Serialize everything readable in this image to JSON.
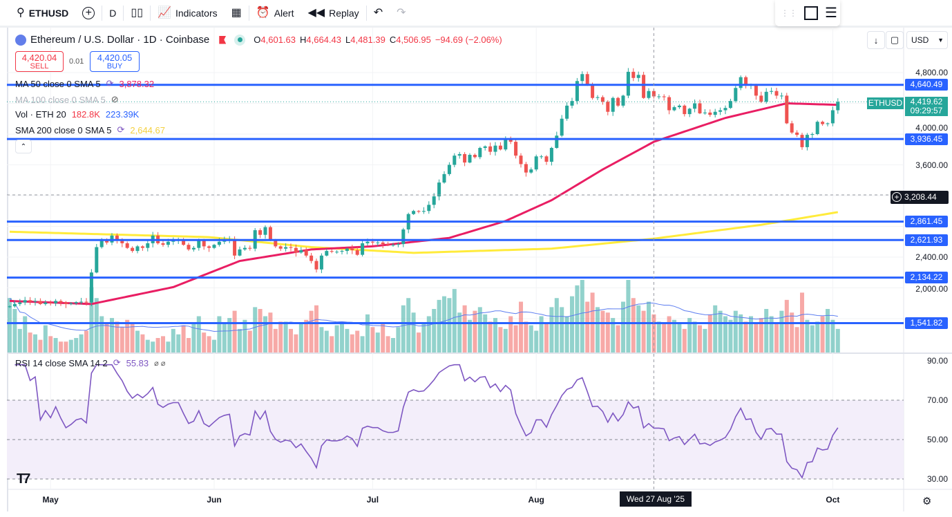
{
  "toolbar": {
    "symbol": "ETHUSD",
    "interval": "D",
    "indicators": "Indicators",
    "alert": "Alert",
    "replay": "Replay"
  },
  "legend": {
    "title": "Ethereum / U.S. Dollar · 1D · Coinbase",
    "o_label": "O",
    "o": "4,601.63",
    "h_label": "H",
    "h": "4,664.43",
    "l_label": "L",
    "l": "4,481.39",
    "c_label": "C",
    "c": "4,506.95",
    "change": "−94.69 (−2.06%)",
    "sell_price": "4,420.04",
    "sell_label": "SELL",
    "spread": "0.01",
    "buy_price": "4,420.05",
    "buy_label": "BUY",
    "ma50_label": "MA 50 close 0 SMA 5",
    "ma50_value": "3,878.32",
    "ma100_label": "MA 100 close 0 SMA 5",
    "vol_label": "Vol · ETH 20",
    "vol_value1": "182.8K",
    "vol_value2": "223.39K",
    "sma200_label": "SMA 200 close 0 SMA 5",
    "sma200_value": "2,644.67",
    "rsi_label": "RSI 14 close SMA 14 2",
    "rsi_value": "55.83",
    "rsi_extra": "⌀ ⌀"
  },
  "price_scale": {
    "currency": "USD",
    "ticks": [
      "4,800.00",
      "4,000.00",
      "3,600.00",
      "2,400.00",
      "2,000.00"
    ],
    "symbol_tag": "ETHUSD",
    "last_price": "4,419.62",
    "countdown": "09:29:57",
    "crosshair_price": "3,208.44"
  },
  "rsi_scale": {
    "ticks": [
      "90.00",
      "70.00",
      "50.00",
      "30.00"
    ]
  },
  "crosshair_date": "Wed 27 Aug '25",
  "colors": {
    "up": "#26a69a",
    "down": "#ef5350",
    "level": "#2962ff",
    "ma50": "#e91e63",
    "sma200": "#ffeb3b",
    "rsi": "#7e57c2",
    "volma": "#5b7cf0"
  },
  "chart_data": {
    "type": "candlestick",
    "title": "Ethereum / U.S. Dollar · 1D · Coinbase",
    "ylim": [
      1400,
      4950
    ],
    "x_labels": [
      {
        "label": "May",
        "index": 8
      },
      {
        "label": "Jun",
        "index": 40
      },
      {
        "label": "Jul",
        "index": 71
      },
      {
        "label": "Aug",
        "index": 103
      },
      {
        "label": "Oct",
        "index": 161
      }
    ],
    "closes": [
      1760,
      1790,
      1810,
      1840,
      1820,
      1830,
      1790,
      1810,
      1800,
      1830,
      1810,
      1790,
      1800,
      1815,
      1820,
      1810,
      2200,
      2530,
      2610,
      2590,
      2680,
      2620,
      2580,
      2520,
      2480,
      2540,
      2520,
      2580,
      2680,
      2580,
      2560,
      2600,
      2620,
      2620,
      2560,
      2500,
      2520,
      2620,
      2540,
      2520,
      2560,
      2600,
      2620,
      2630,
      2420,
      2500,
      2520,
      2510,
      2750,
      2690,
      2790,
      2620,
      2540,
      2510,
      2530,
      2520,
      2460,
      2490,
      2420,
      2350,
      2240,
      2420,
      2480,
      2470,
      2470,
      2480,
      2510,
      2490,
      2430,
      2580,
      2600,
      2590,
      2590,
      2570,
      2560,
      2560,
      2570,
      2760,
      2960,
      3000,
      2990,
      3000,
      3080,
      3190,
      3370,
      3480,
      3600,
      3720,
      3740,
      3630,
      3730,
      3700,
      3820,
      3840,
      3770,
      3850,
      3800,
      3930,
      3900,
      3720,
      3610,
      3500,
      3540,
      3710,
      3710,
      3640,
      3820,
      3980,
      4200,
      4370,
      4430,
      4690,
      4780,
      4640,
      4470,
      4480,
      4420,
      4290,
      4470,
      4370,
      4500,
      4810,
      4730,
      4770,
      4470,
      4560,
      4490,
      4490,
      4480,
      4310,
      4350,
      4370,
      4260,
      4330,
      4400,
      4270,
      4280,
      4250,
      4290,
      4310,
      4340,
      4430,
      4600,
      4740,
      4630,
      4640,
      4500,
      4420,
      4550,
      4560,
      4500,
      4500,
      4140,
      4020,
      3990,
      3830,
      3990,
      4000,
      4160,
      4130,
      4140,
      4310,
      4420
    ],
    "volumes_k": [
      300,
      240,
      130,
      200,
      110,
      100,
      70,
      150,
      90,
      80,
      60,
      60,
      70,
      80,
      100,
      120,
      360,
      300,
      200,
      160,
      190,
      170,
      140,
      180,
      160,
      120,
      100,
      70,
      60,
      80,
      90,
      60,
      130,
      100,
      150,
      80,
      160,
      200,
      110,
      90,
      70,
      200,
      160,
      190,
      230,
      130,
      180,
      120,
      250,
      240,
      200,
      220,
      130,
      170,
      170,
      130,
      100,
      160,
      180,
      230,
      260,
      140,
      120,
      90,
      150,
      160,
      130,
      100,
      120,
      90,
      210,
      140,
      110,
      160,
      90,
      80,
      140,
      260,
      300,
      220,
      110,
      160,
      200,
      240,
      290,
      310,
      300,
      350,
      220,
      260,
      180,
      230,
      250,
      210,
      170,
      190,
      140,
      130,
      200,
      150,
      280,
      170,
      150,
      120,
      200,
      160,
      250,
      300,
      250,
      200,
      310,
      370,
      400,
      280,
      330,
      250,
      230,
      220,
      190,
      150,
      280,
      400,
      300,
      260,
      230,
      280,
      210,
      170,
      160,
      200,
      180,
      160,
      130,
      190,
      170,
      150,
      130,
      210,
      260,
      230,
      200,
      180,
      230,
      210,
      170,
      200,
      160,
      190,
      240,
      200,
      160,
      230,
      290,
      220,
      140,
      330,
      180,
      150,
      170,
      200,
      240,
      180,
      130
    ],
    "ma50": [
      [
        0,
        1830
      ],
      [
        16,
        1790
      ],
      [
        32,
        2010
      ],
      [
        45,
        2350
      ],
      [
        59,
        2500
      ],
      [
        71,
        2540
      ],
      [
        86,
        2650
      ],
      [
        97,
        2870
      ],
      [
        106,
        3140
      ],
      [
        116,
        3540
      ],
      [
        126,
        3900
      ],
      [
        140,
        4210
      ],
      [
        152,
        4400
      ],
      [
        162,
        4380
      ]
    ],
    "sma200": [
      [
        0,
        2730
      ],
      [
        39,
        2660
      ],
      [
        59,
        2530
      ],
      [
        79,
        2455
      ],
      [
        106,
        2510
      ],
      [
        126,
        2640
      ],
      [
        147,
        2820
      ],
      [
        162,
        2985
      ]
    ],
    "levels": [
      4640.49,
      3936.45,
      2861.45,
      2621.93,
      2134.22,
      1541.82
    ],
    "level_labels": [
      "4,640.49",
      "3,936.45",
      "2,861.45",
      "2,621.93",
      "2,134.22",
      "1,541.82"
    ],
    "crosshair": {
      "price": 3208.44,
      "index": 126
    },
    "rsi_range": [
      30,
      70
    ]
  }
}
